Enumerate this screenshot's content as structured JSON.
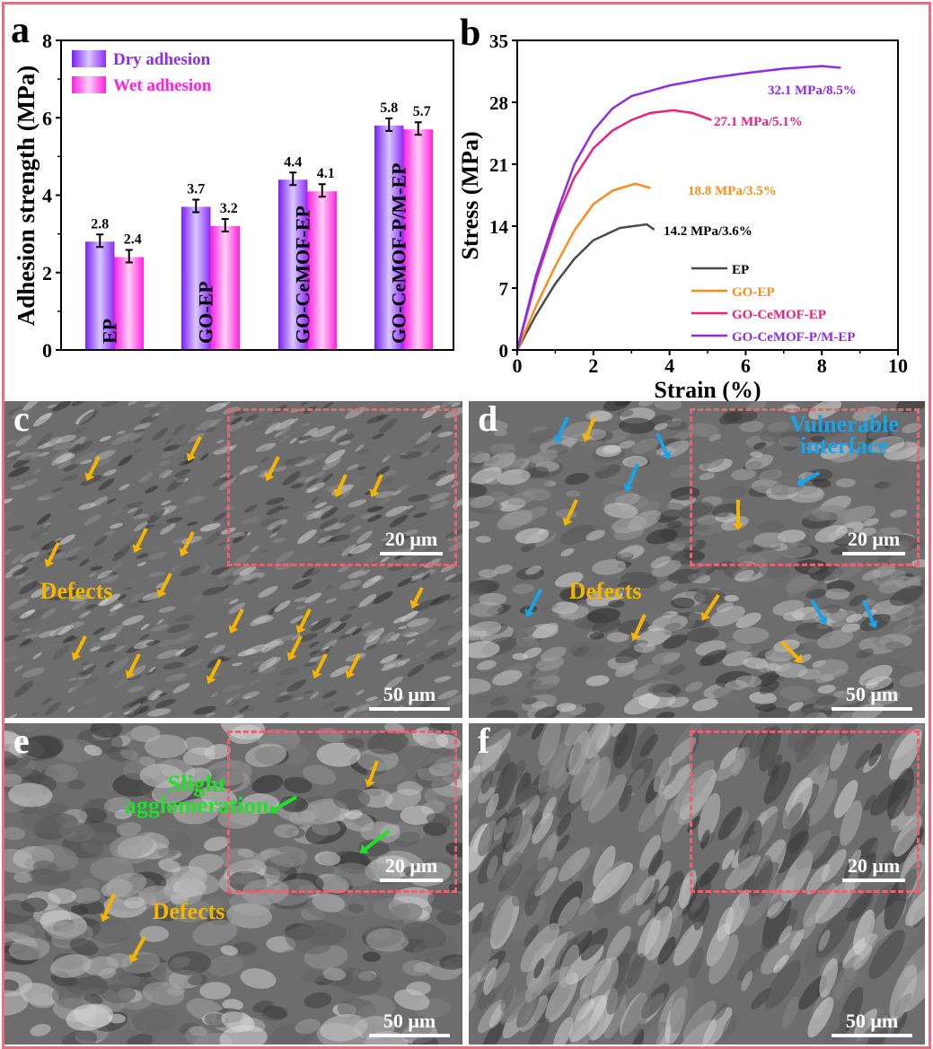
{
  "panel_labels": {
    "a": "a",
    "b": "b",
    "c": "c",
    "d": "d",
    "e": "e",
    "f": "f"
  },
  "chart_data": [
    {
      "type": "bar",
      "title": "",
      "xlabel": "",
      "ylabel": "Adhesion strength (MPa)",
      "ylim": [
        0,
        8
      ],
      "yticks": [
        "0",
        "2",
        "4",
        "6",
        "8"
      ],
      "categories": [
        "EP",
        "GO-EP",
        "GO-CeMOF-EP",
        "GO-CeMOF-P/M-EP"
      ],
      "series": [
        {
          "name": "Dry adhesion",
          "values": [
            2.8,
            3.7,
            4.4,
            5.8
          ],
          "color": "#8b2cf5"
        },
        {
          "name": "Wet adhesion",
          "values": [
            2.4,
            3.2,
            4.1,
            5.7
          ],
          "color": "#ff1fe0"
        }
      ],
      "legend": "top-left"
    },
    {
      "type": "line",
      "xlabel": "Strain (%)",
      "ylabel": "Stress (MPa)",
      "xlim": [
        0,
        10
      ],
      "ylim": [
        0,
        35
      ],
      "xticks": [
        "0",
        "2",
        "4",
        "6",
        "8",
        "10"
      ],
      "yticks": [
        "0",
        "7",
        "14",
        "21",
        "28",
        "35"
      ],
      "legend": "bottom-right",
      "series": [
        {
          "name": "EP",
          "color": "#4a4a4a",
          "annotation": "14.2 MPa/3.6%",
          "x": [
            0,
            0.5,
            1,
            1.5,
            2,
            2.7,
            3.4,
            3.6
          ],
          "y": [
            0,
            4,
            7.5,
            10.3,
            12.4,
            13.8,
            14.2,
            13.6
          ]
        },
        {
          "name": "GO-EP",
          "color": "#ff8c1a",
          "annotation": "18.8 MPa/3.5%",
          "x": [
            0,
            0.5,
            1,
            1.5,
            2,
            2.5,
            3.1,
            3.5
          ],
          "y": [
            0,
            5,
            9.5,
            13.5,
            16.5,
            18,
            18.8,
            18.3
          ]
        },
        {
          "name": "GO-CeMOF-EP",
          "color": "#f0207a",
          "annotation": "27.1 MPa/5.1%",
          "x": [
            0,
            0.5,
            1,
            1.5,
            2,
            2.5,
            3,
            3.5,
            4.1,
            4.6,
            5.1
          ],
          "y": [
            0,
            8,
            14.5,
            19.5,
            22.8,
            24.8,
            26,
            26.8,
            27.1,
            26.8,
            26
          ]
        },
        {
          "name": "GO-CeMOF-P/M-EP",
          "color": "#8a2cf0",
          "annotation": "32.1 MPa/8.5%",
          "x": [
            0,
            0.5,
            1,
            1.5,
            2,
            2.5,
            3,
            4,
            5,
            6,
            7,
            8,
            8.5
          ],
          "y": [
            0,
            8.5,
            15,
            21,
            24.8,
            27.3,
            28.7,
            29.9,
            30.7,
            31.3,
            31.8,
            32.1,
            31.9
          ]
        }
      ]
    }
  ],
  "sem": {
    "defects": "Defects",
    "vulnerable": "Vulnerable interface",
    "agglomeration": "Slight agglomeration",
    "scale_inset": "20 μm",
    "scale_main": "50 μm",
    "colors": {
      "defect": "#f5b400",
      "interface": "#1aa3e8",
      "agglomeration": "#22e02a"
    }
  }
}
